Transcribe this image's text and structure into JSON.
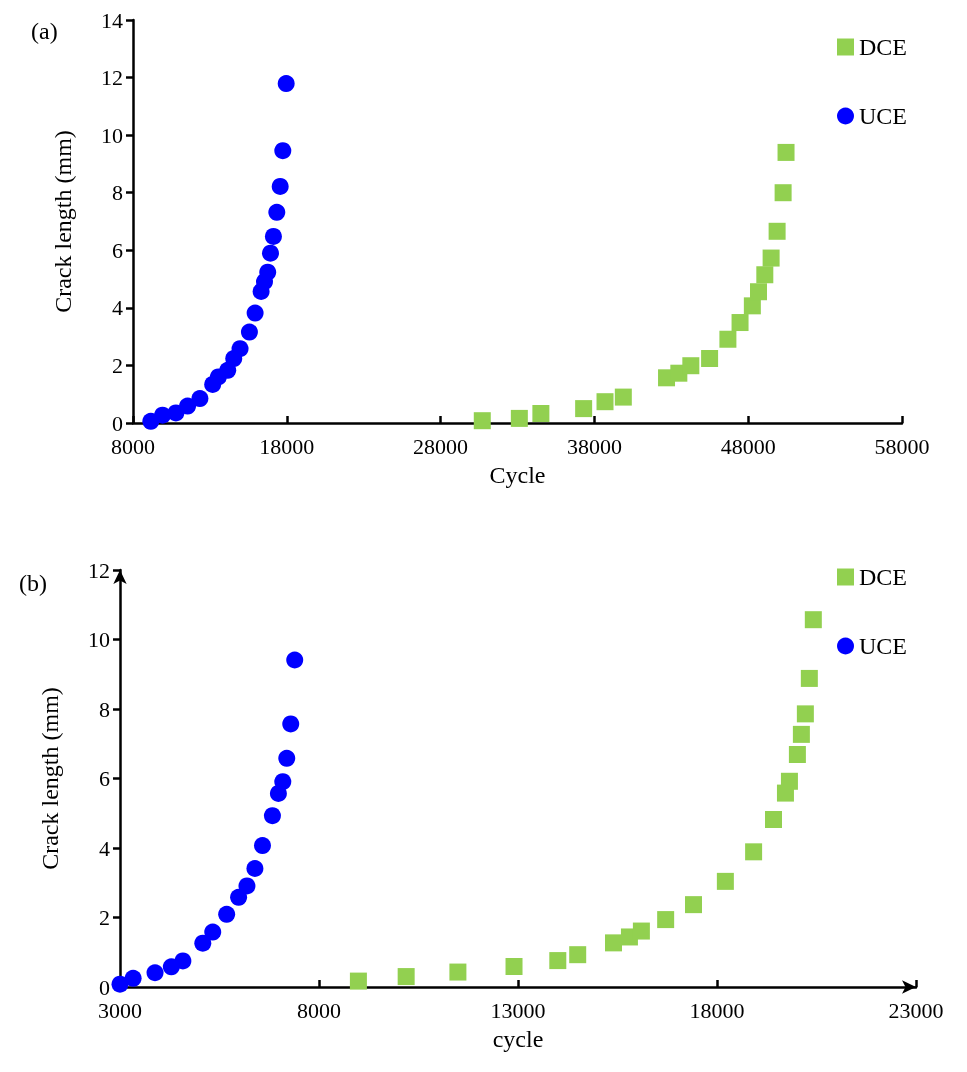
{
  "chart_data": [
    {
      "type": "scatter",
      "title": "(a)",
      "xlabel": "Cycle",
      "ylabel": "Crack length (mm)",
      "xlim": [
        8000,
        58000
      ],
      "xticks": [
        8000,
        18000,
        28000,
        38000,
        48000,
        58000
      ],
      "ylim": [
        0,
        14
      ],
      "yticks": [
        0,
        2,
        4,
        6,
        8,
        10,
        12,
        14
      ],
      "grid": false,
      "legend": "top right",
      "series": [
        {
          "name": "DCE",
          "color": "#92d050",
          "marker": "square",
          "x": [
            30710,
            33120,
            34520,
            37300,
            38690,
            39880,
            42690,
            43490,
            44270,
            45490,
            46680,
            47470,
            48270,
            48670,
            49080,
            49490,
            49880,
            50270,
            50460
          ],
          "values": [
            0.08,
            0.16,
            0.33,
            0.5,
            0.74,
            0.9,
            1.57,
            1.73,
            1.99,
            2.24,
            2.91,
            3.49,
            4.07,
            4.56,
            5.15,
            5.73,
            6.66,
            8.0,
            9.4
          ]
        },
        {
          "name": "UCE",
          "color": "#0000ff",
          "marker": "circle",
          "x": [
            9160,
            9920,
            10790,
            11550,
            12350,
            13180,
            13550,
            14160,
            14550,
            14960,
            15570,
            15940,
            16330,
            16550,
            16760,
            16940,
            17130,
            17350,
            17570,
            17740,
            17960
          ],
          "values": [
            0.06,
            0.27,
            0.35,
            0.59,
            0.85,
            1.34,
            1.6,
            1.83,
            2.24,
            2.58,
            3.16,
            3.82,
            4.57,
            4.91,
            5.24,
            5.9,
            6.48,
            7.32,
            8.22,
            9.46,
            11.79
          ]
        }
      ]
    },
    {
      "type": "scatter",
      "title": "(b)",
      "xlabel": "cycle",
      "ylabel": "Crack length (mm)",
      "xlim": [
        3000,
        23000
      ],
      "xticks": [
        3000,
        8000,
        13000,
        18000,
        23000
      ],
      "ylim": [
        0,
        12
      ],
      "yticks": [
        0,
        2,
        4,
        6,
        8,
        10,
        12
      ],
      "grid": false,
      "legend": "top right",
      "series": [
        {
          "name": "DCE",
          "color": "#92d050",
          "marker": "square",
          "x": [
            8990,
            10190,
            11490,
            12900,
            14000,
            14500,
            15400,
            15800,
            16100,
            16710,
            17410,
            18210,
            18920,
            19420,
            19720,
            19820,
            20020,
            20120,
            20220,
            20320,
            20420
          ],
          "values": [
            0.17,
            0.3,
            0.43,
            0.59,
            0.76,
            0.93,
            1.27,
            1.44,
            1.61,
            1.94,
            2.37,
            3.04,
            3.89,
            4.82,
            5.58,
            5.92,
            6.69,
            7.27,
            7.86,
            8.88,
            10.57
          ]
        },
        {
          "name": "UCE",
          "color": "#0000ff",
          "marker": "circle",
          "x": [
            3000,
            3330,
            3880,
            4290,
            4580,
            5080,
            5330,
            5680,
            5980,
            6190,
            6390,
            6580,
            6830,
            6980,
            7090,
            7190,
            7290,
            7390
          ],
          "values": [
            0.08,
            0.25,
            0.41,
            0.58,
            0.75,
            1.26,
            1.58,
            2.09,
            2.58,
            2.91,
            3.41,
            4.07,
            4.93,
            5.57,
            5.91,
            6.58,
            7.57,
            9.41
          ]
        }
      ]
    }
  ]
}
